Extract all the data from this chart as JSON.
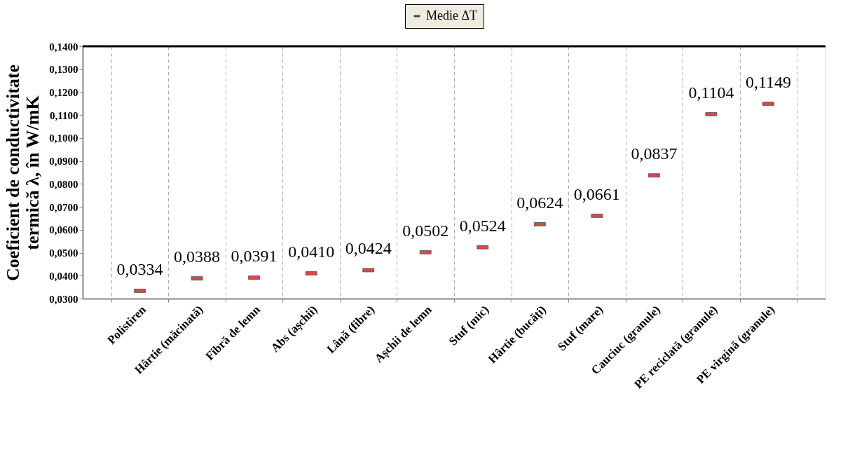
{
  "chart_data": {
    "type": "scatter",
    "ylabel": "Coeficient de conductivitate termică λ, în W/mK",
    "categories": [
      "Polistiren",
      "Hârtie (măcinată)",
      "Fibră de lemn",
      "Abs (așchii)",
      "Lână (fibre)",
      "Așchii de lemn",
      "Stuf (mic)",
      "Hârtie (bucăți)",
      "Stuf (mare)",
      "Cauciuc (granule)",
      "PE reciclată (granule)",
      "PE virgină (granule)"
    ],
    "series": [
      {
        "name": "Medie ΔT",
        "color": "#c00000",
        "values": [
          0.0334,
          0.0388,
          0.0391,
          0.041,
          0.0424,
          0.0502,
          0.0524,
          0.0624,
          0.0661,
          0.0837,
          0.1104,
          0.1149
        ],
        "value_labels": [
          "0,0334",
          "0,0388",
          "0,0391",
          "0,0410",
          "0,0424",
          "0,0502",
          "0,0524",
          "0,0624",
          "0,0661",
          "0,0837",
          "0,1104",
          "0,1149"
        ]
      }
    ],
    "ylim": [
      0.03,
      0.14
    ],
    "yticks": [
      {
        "value": 0.03,
        "label": "0,0300"
      },
      {
        "value": 0.04,
        "label": "0,0400"
      },
      {
        "value": 0.05,
        "label": "0,0500"
      },
      {
        "value": 0.06,
        "label": "0,0600"
      },
      {
        "value": 0.07,
        "label": "0,0700"
      },
      {
        "value": 0.08,
        "label": "0,0800"
      },
      {
        "value": 0.09,
        "label": "0,0900"
      },
      {
        "value": 0.1,
        "label": "0,1000"
      },
      {
        "value": 0.11,
        "label": "0,1100"
      },
      {
        "value": 0.12,
        "label": "0,1200"
      },
      {
        "value": 0.13,
        "label": "0,1300"
      },
      {
        "value": 0.14,
        "label": "0,1400"
      }
    ],
    "grid": "x",
    "legend": "top"
  }
}
